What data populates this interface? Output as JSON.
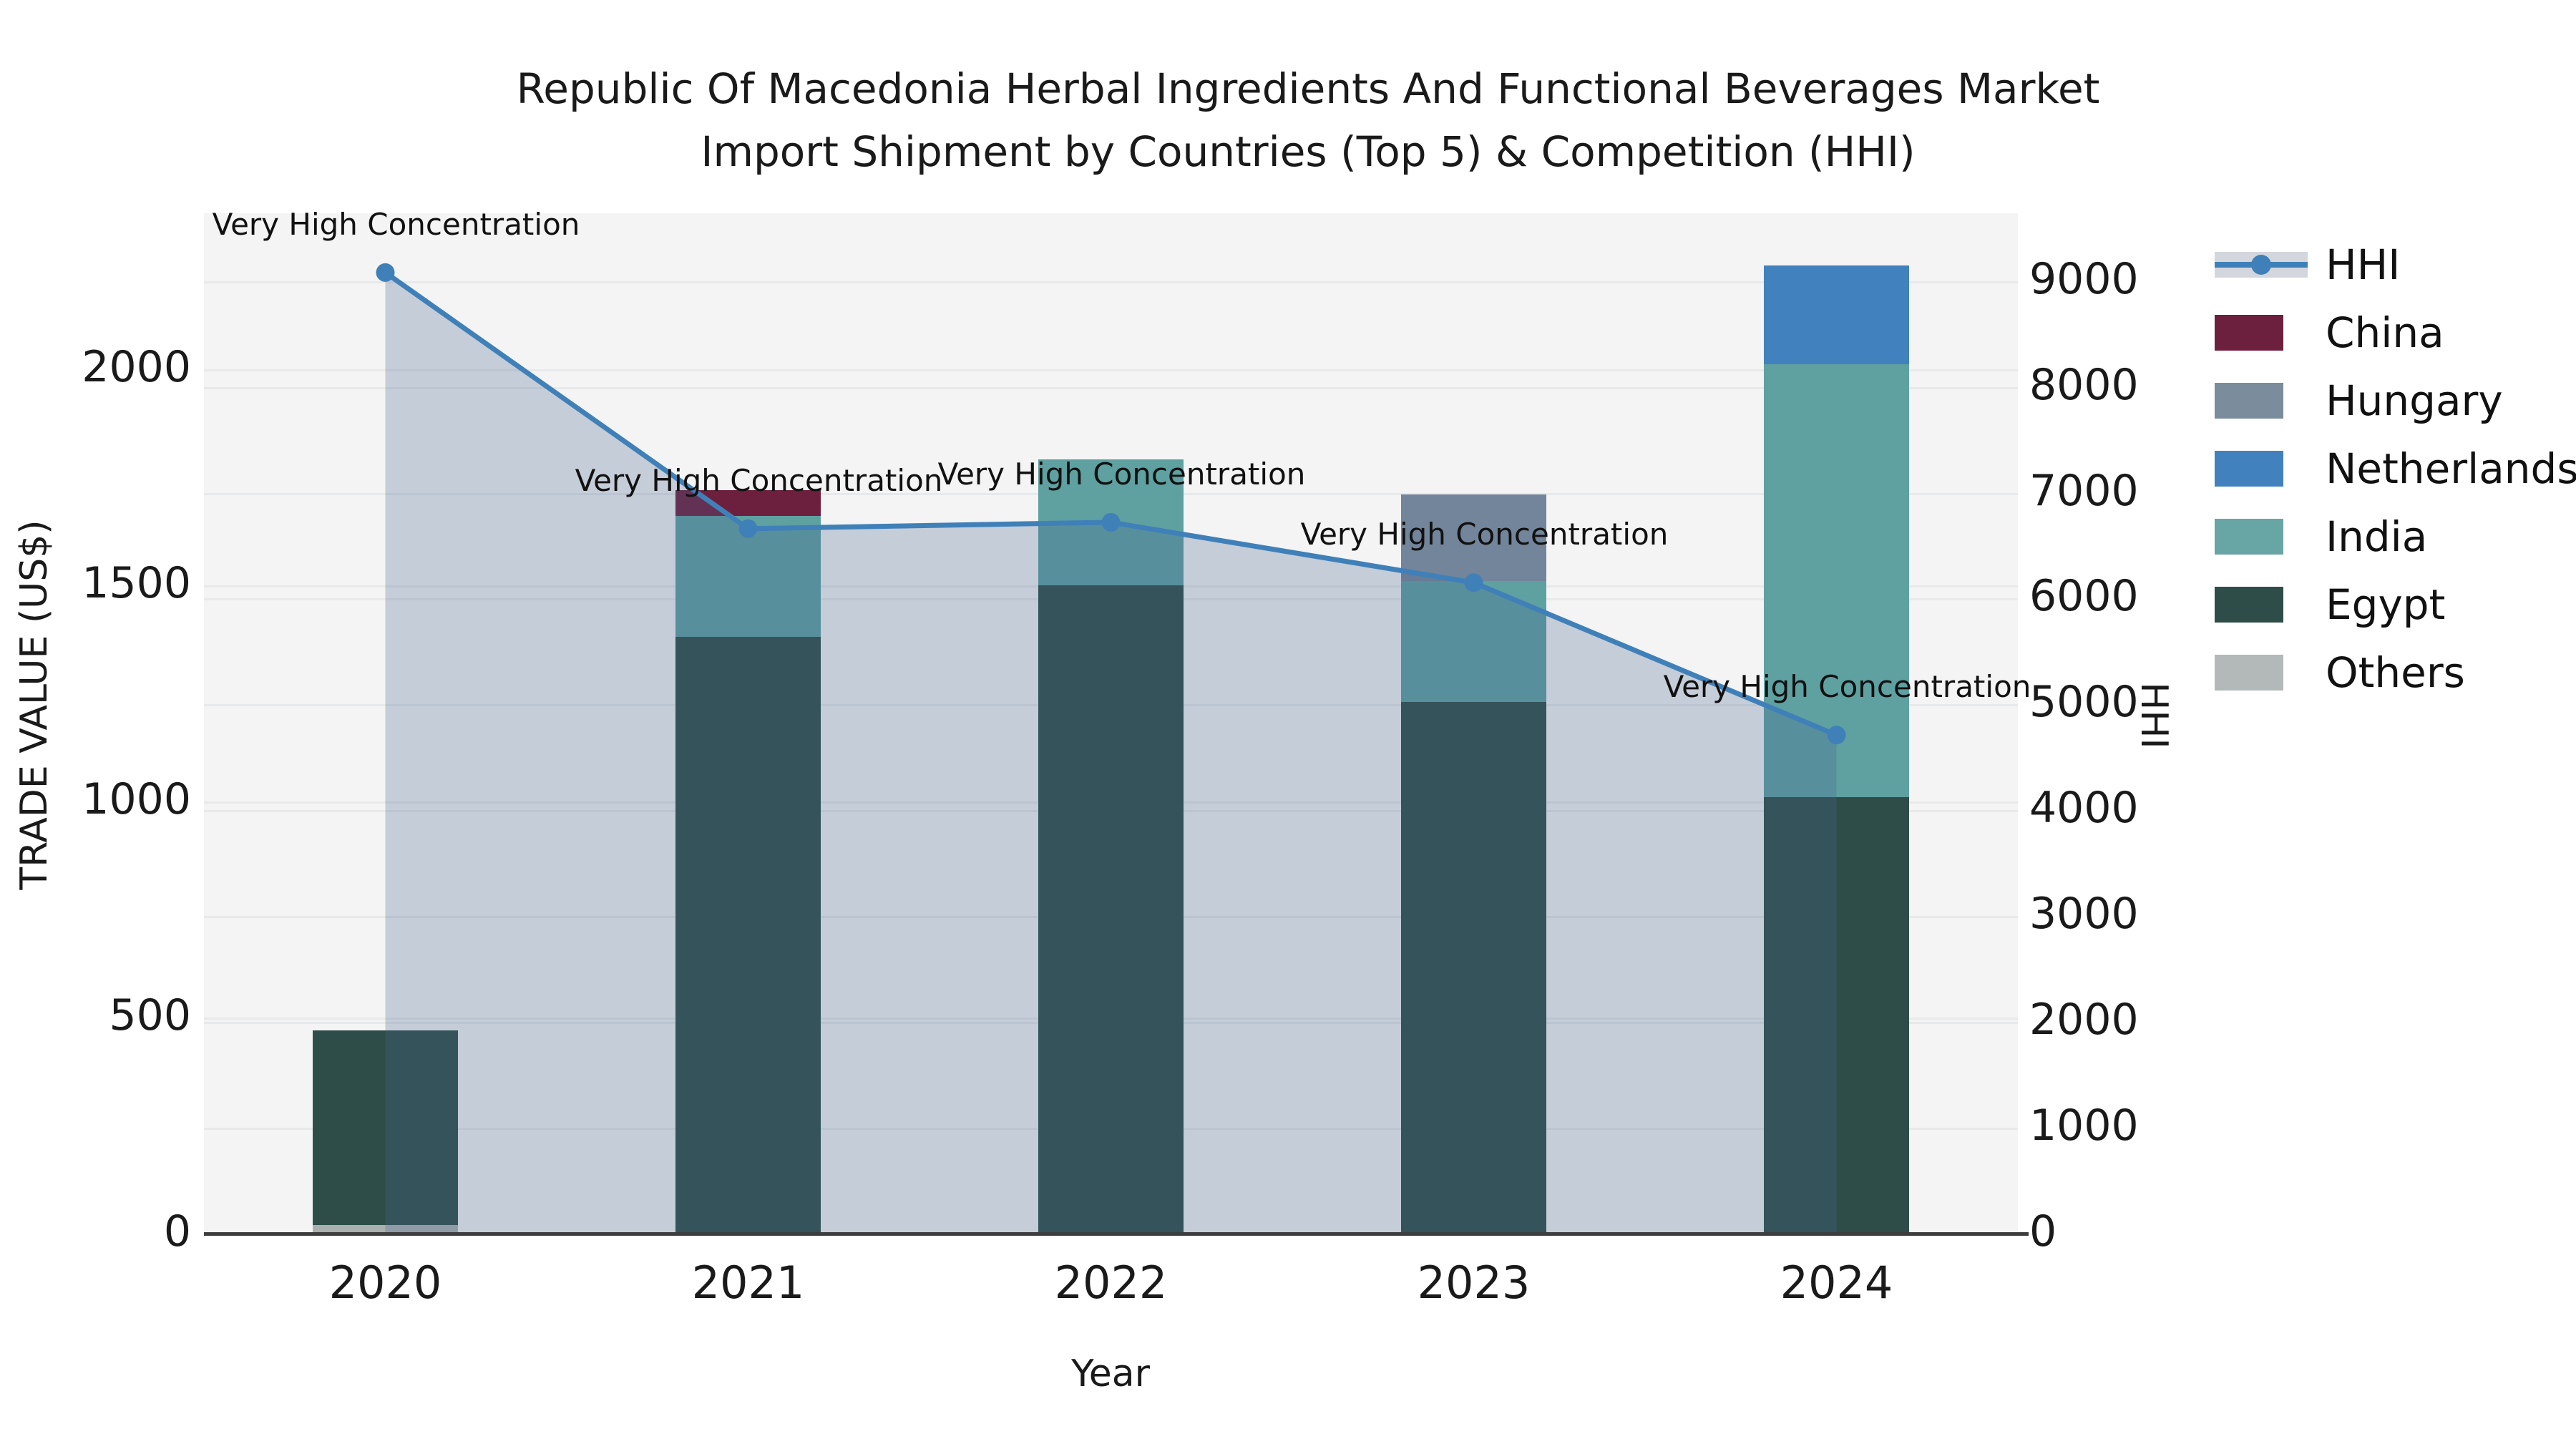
{
  "title": {
    "line1": "Republic Of Macedonia Herbal Ingredients And Functional Beverages Market",
    "line2": "Import Shipment by Countries (Top 5) & Competition (HHI)"
  },
  "axes": {
    "x_label": "Year",
    "y_left_label": "TRADE VALUE (US$)",
    "y_right_label": "HHI",
    "y_left_ticks": [
      "0",
      "500",
      "1000",
      "1500",
      "2000"
    ],
    "y_left_tick_values": [
      0,
      500,
      1000,
      1500,
      2000
    ],
    "y_left_max": 2360,
    "y_right_ticks": [
      "0",
      "1000",
      "2000",
      "3000",
      "4000",
      "5000",
      "6000",
      "7000",
      "8000",
      "9000"
    ],
    "y_right_tick_values": [
      0,
      1000,
      2000,
      3000,
      4000,
      5000,
      6000,
      7000,
      8000,
      9000
    ],
    "y_right_max": 9640
  },
  "chart_data": {
    "type": "bar",
    "subtype": "stacked-bars-with-line",
    "title": "Republic Of Macedonia Herbal Ingredients And Functional Beverages Market Import Shipment by Countries (Top 5) & Competition (HHI)",
    "xlabel": "Year",
    "ylabel_left": "TRADE VALUE (US$)",
    "ylabel_right": "HHI",
    "ylim_left": [
      0,
      2360
    ],
    "ylim_right": [
      0,
      9640
    ],
    "grid": true,
    "legend_position": "right",
    "categories": [
      "2020",
      "2021",
      "2022",
      "2023",
      "2024"
    ],
    "series": [
      {
        "name": "Others",
        "color": "#aab0b0",
        "values": [
          20,
          0,
          0,
          0,
          0
        ]
      },
      {
        "name": "Egypt",
        "color": "#2f4d48",
        "values": [
          450,
          1380,
          1500,
          1230,
          1010
        ]
      },
      {
        "name": "India",
        "color": "#5fa0a1",
        "values": [
          0,
          280,
          290,
          280,
          1000
        ]
      },
      {
        "name": "Netherlands",
        "color": "#4181be",
        "values": [
          0,
          0,
          0,
          0,
          230
        ]
      },
      {
        "name": "Hungary",
        "color": "#72859a",
        "values": [
          0,
          0,
          0,
          200,
          0
        ]
      },
      {
        "name": "China",
        "color": "#6d1f3e",
        "values": [
          0,
          60,
          0,
          0,
          0
        ]
      }
    ],
    "line_series": {
      "name": "HHI",
      "color": "#4080b8",
      "fill_color": "rgba(70,100,145,0.27)",
      "values": [
        9080,
        6660,
        6720,
        6150,
        4710
      ]
    },
    "annotations": [
      {
        "index": 0,
        "text": "Very High Concentration"
      },
      {
        "index": 1,
        "text": "Very High Concentration"
      },
      {
        "index": 2,
        "text": "Very High Concentration"
      },
      {
        "index": 3,
        "text": "Very High Concentration"
      },
      {
        "index": 4,
        "text": "Very High Concentration"
      }
    ]
  },
  "legend": {
    "items": [
      {
        "label": "HHI",
        "type": "line",
        "color": "#4080b8",
        "band_color": "#d3d7dd"
      },
      {
        "label": "China",
        "type": "swatch",
        "color": "#6d1f3e"
      },
      {
        "label": "Hungary",
        "type": "swatch",
        "color": "#7b8c9d"
      },
      {
        "label": "Netherlands",
        "type": "swatch",
        "color": "#4181be"
      },
      {
        "label": "India",
        "type": "swatch",
        "color": "#68a5a5"
      },
      {
        "label": "Egypt",
        "type": "swatch",
        "color": "#2f4d48"
      },
      {
        "label": "Others",
        "type": "swatch",
        "color": "#b3b8b8"
      }
    ]
  },
  "colors": {
    "plot_background": "#f4f4f4",
    "figure_background": "#ffffff",
    "gridline": "#e7e9ea",
    "axis_spine": "#3d3d3d",
    "text": "#1a1a1a"
  }
}
